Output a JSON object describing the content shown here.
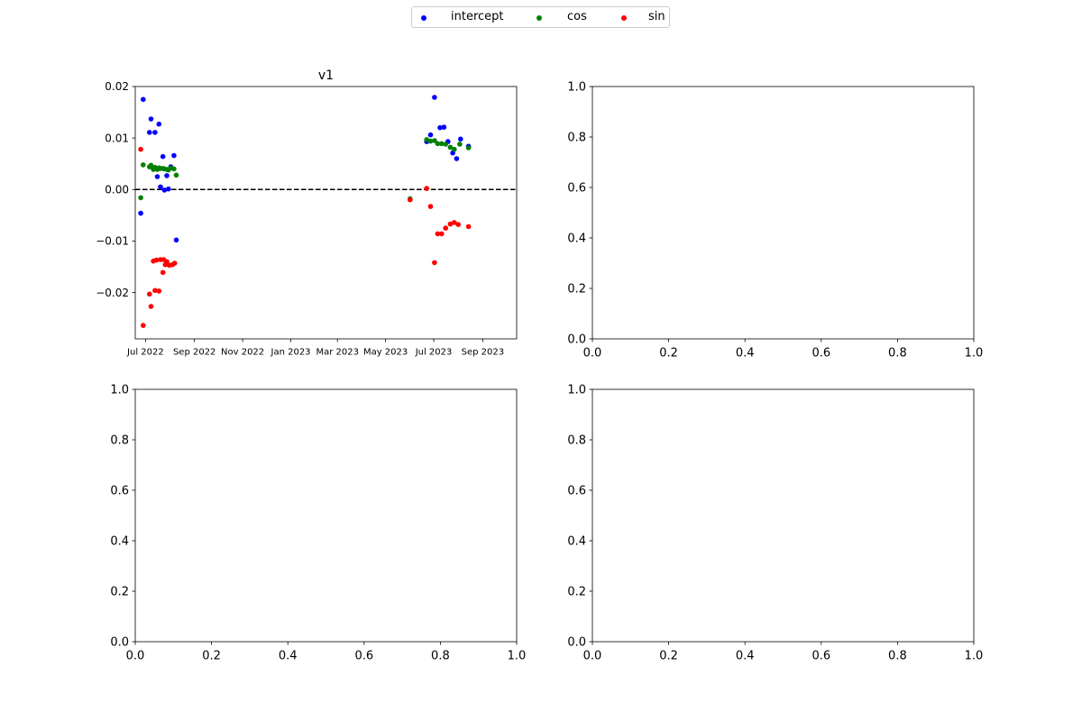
{
  "legend": {
    "items": [
      {
        "label": "intercept",
        "color": "#0000ff"
      },
      {
        "label": "cos",
        "color": "#008000"
      },
      {
        "label": "sin",
        "color": "#ff0000"
      }
    ]
  },
  "chart_data": [
    {
      "type": "scatter",
      "title": "v1",
      "xlabel": "",
      "ylabel": "",
      "x_axis": {
        "type": "date",
        "range": [
          "2022-06-18",
          "2023-10-14"
        ],
        "tick_labels": [
          "Jul 2022",
          "Sep 2022",
          "Nov 2022",
          "Jan 2023",
          "Mar 2023",
          "May 2023",
          "Jul 2023",
          "Sep 2023"
        ]
      },
      "ylim": [
        -0.029,
        0.02
      ],
      "yticks": [
        "0.02",
        "0.01",
        "0.00",
        "−0.01",
        "−0.02"
      ],
      "reference_line": {
        "y": 0.0,
        "style": "dashed",
        "color": "#000000"
      },
      "series": [
        {
          "name": "intercept",
          "color": "#0000ff",
          "points": [
            [
              "2022-06-25",
              -0.0046
            ],
            [
              "2022-06-28",
              0.0175
            ],
            [
              "2022-07-06",
              0.0111
            ],
            [
              "2022-07-08",
              0.0137
            ],
            [
              "2022-07-13",
              0.0111
            ],
            [
              "2022-07-16",
              0.0025
            ],
            [
              "2022-07-18",
              0.0127
            ],
            [
              "2022-07-20",
              0.0005
            ],
            [
              "2022-07-23",
              0.0064
            ],
            [
              "2022-07-25",
              -0.0001
            ],
            [
              "2022-07-28",
              0.0027
            ],
            [
              "2022-07-30",
              0.0001
            ],
            [
              "2022-08-02",
              0.0044
            ],
            [
              "2022-08-06",
              0.0066
            ],
            [
              "2022-08-09",
              -0.0098
            ],
            [
              "2023-06-01",
              -0.0019
            ],
            [
              "2023-06-22",
              0.0093
            ],
            [
              "2023-06-27",
              0.0106
            ],
            [
              "2023-07-02",
              0.0179
            ],
            [
              "2023-07-09",
              0.012
            ],
            [
              "2023-07-14",
              0.0121
            ],
            [
              "2023-07-19",
              0.0093
            ],
            [
              "2023-07-25",
              0.0071
            ],
            [
              "2023-07-30",
              0.006
            ],
            [
              "2023-08-04",
              0.0098
            ],
            [
              "2023-08-14",
              0.0084
            ]
          ]
        },
        {
          "name": "cos",
          "color": "#008000",
          "points": [
            [
              "2022-06-25",
              -0.0016
            ],
            [
              "2022-06-28",
              0.0048
            ],
            [
              "2022-07-06",
              0.0044
            ],
            [
              "2022-07-08",
              0.0047
            ],
            [
              "2022-07-11",
              0.0039
            ],
            [
              "2022-07-13",
              0.0043
            ],
            [
              "2022-07-16",
              0.0039
            ],
            [
              "2022-07-18",
              0.0042
            ],
            [
              "2022-07-20",
              0.0041
            ],
            [
              "2022-07-23",
              0.0041
            ],
            [
              "2022-07-25",
              0.004
            ],
            [
              "2022-07-28",
              0.0039
            ],
            [
              "2022-07-30",
              0.0038
            ],
            [
              "2022-08-02",
              0.0042
            ],
            [
              "2022-08-06",
              0.004
            ],
            [
              "2022-08-09",
              0.0028
            ],
            [
              "2023-06-01",
              -0.0018
            ],
            [
              "2023-06-22",
              0.0097
            ],
            [
              "2023-06-27",
              0.0094
            ],
            [
              "2023-07-02",
              0.0095
            ],
            [
              "2023-07-06",
              0.0089
            ],
            [
              "2023-07-11",
              0.0089
            ],
            [
              "2023-07-16",
              0.0088
            ],
            [
              "2023-07-22",
              0.0082
            ],
            [
              "2023-07-27",
              0.0078
            ],
            [
              "2023-08-03",
              0.0088
            ],
            [
              "2023-08-14",
              0.0081
            ]
          ]
        },
        {
          "name": "sin",
          "color": "#ff0000",
          "points": [
            [
              "2022-06-25",
              0.0078
            ],
            [
              "2022-06-28",
              -0.0264
            ],
            [
              "2022-07-06",
              -0.0203
            ],
            [
              "2022-07-08",
              -0.0227
            ],
            [
              "2022-07-11",
              -0.0139
            ],
            [
              "2022-07-13",
              -0.0196
            ],
            [
              "2022-07-15",
              -0.0137
            ],
            [
              "2022-07-18",
              -0.0197
            ],
            [
              "2022-07-20",
              -0.0136
            ],
            [
              "2022-07-23",
              -0.0161
            ],
            [
              "2022-07-24",
              -0.0136
            ],
            [
              "2022-07-26",
              -0.0146
            ],
            [
              "2022-07-28",
              -0.014
            ],
            [
              "2022-07-31",
              -0.0147
            ],
            [
              "2022-08-04",
              -0.0146
            ],
            [
              "2022-08-07",
              -0.0143
            ],
            [
              "2023-06-01",
              -0.002
            ],
            [
              "2023-06-22",
              0.0002
            ],
            [
              "2023-06-27",
              -0.0033
            ],
            [
              "2023-07-02",
              -0.0142
            ],
            [
              "2023-07-06",
              -0.0086
            ],
            [
              "2023-07-11",
              -0.0086
            ],
            [
              "2023-07-16",
              -0.0075
            ],
            [
              "2023-07-22",
              -0.0067
            ],
            [
              "2023-07-27",
              -0.0064
            ],
            [
              "2023-08-01",
              -0.0068
            ],
            [
              "2023-08-14",
              -0.0072
            ]
          ]
        }
      ]
    },
    {
      "type": "scatter",
      "title": "",
      "xlim": [
        0,
        1
      ],
      "ylim": [
        0,
        1
      ],
      "xticks": [
        "0.0",
        "0.2",
        "0.4",
        "0.6",
        "0.8",
        "1.0"
      ],
      "yticks": [
        "0.0",
        "0.2",
        "0.4",
        "0.6",
        "0.8",
        "1.0"
      ],
      "series": []
    },
    {
      "type": "scatter",
      "title": "",
      "xlim": [
        0,
        1
      ],
      "ylim": [
        0,
        1
      ],
      "xticks": [
        "0.0",
        "0.2",
        "0.4",
        "0.6",
        "0.8",
        "1.0"
      ],
      "yticks": [
        "0.0",
        "0.2",
        "0.4",
        "0.6",
        "0.8",
        "1.0"
      ],
      "series": []
    },
    {
      "type": "scatter",
      "title": "",
      "xlim": [
        0,
        1
      ],
      "ylim": [
        0,
        1
      ],
      "xticks": [
        "0.0",
        "0.2",
        "0.4",
        "0.6",
        "0.8",
        "1.0"
      ],
      "yticks": [
        "0.0",
        "0.2",
        "0.4",
        "0.6",
        "0.8",
        "1.0"
      ],
      "series": []
    }
  ]
}
